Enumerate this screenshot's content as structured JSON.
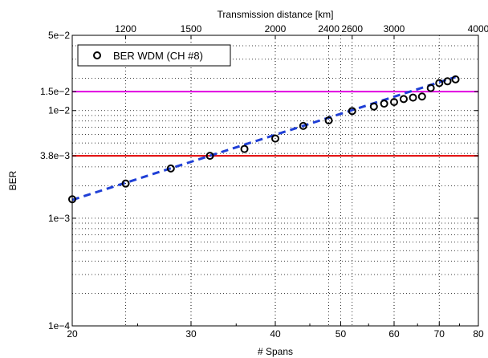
{
  "chart_data": {
    "type": "scatter",
    "title": "",
    "xlabel": "# Spans",
    "ylabel": "BER",
    "top_xlabel": "Transmission distance [km]",
    "x_scale": "log",
    "y_scale": "log",
    "xlim": [
      20,
      80
    ],
    "ylim": [
      0.0001,
      0.05
    ],
    "grid": true,
    "legend_position": "top-left",
    "x_ticks": [
      {
        "value": 20,
        "label": "20"
      },
      {
        "value": 30,
        "label": "30"
      },
      {
        "value": 40,
        "label": "40"
      },
      {
        "value": 50,
        "label": "50"
      },
      {
        "value": 60,
        "label": "60"
      },
      {
        "value": 70,
        "label": "70"
      },
      {
        "value": 80,
        "label": "80"
      }
    ],
    "y_ticks": [
      {
        "value": 0.0001,
        "label": "1e−4"
      },
      {
        "value": 0.001,
        "label": "1e−3"
      },
      {
        "value": 0.0038,
        "label": "3.8e−3"
      },
      {
        "value": 0.01,
        "label": "1e−2"
      },
      {
        "value": 0.015,
        "label": "1.5e−2"
      },
      {
        "value": 0.05,
        "label": "5e−2"
      }
    ],
    "top_ticks": [
      {
        "spans": 24,
        "label": "1200"
      },
      {
        "spans": 30,
        "label": "1500"
      },
      {
        "spans": 40,
        "label": "2000"
      },
      {
        "spans": 48,
        "label": "2400"
      },
      {
        "spans": 52,
        "label": "2600"
      },
      {
        "spans": 60,
        "label": "3000"
      },
      {
        "spans": 80,
        "label": "4000"
      }
    ],
    "series": [
      {
        "name": "BER WDM (CH #8)",
        "marker": "circle",
        "color": "#000000",
        "x": [
          20,
          24,
          28,
          32,
          36,
          40,
          44,
          48,
          52,
          56,
          58,
          60,
          62,
          64,
          66,
          68,
          70,
          72,
          74
        ],
        "y": [
          0.0015,
          0.0021,
          0.0029,
          0.0038,
          0.0044,
          0.0055,
          0.0072,
          0.0081,
          0.0099,
          0.0109,
          0.0116,
          0.012,
          0.0128,
          0.0132,
          0.0135,
          0.0162,
          0.018,
          0.0187,
          0.0195
        ]
      }
    ],
    "fit_line": {
      "x": [
        20,
        74
      ],
      "y": [
        0.00148,
        0.0205
      ],
      "color": "#1f3fd6",
      "style": "dashed"
    },
    "reference_lines": [
      {
        "y": 0.015,
        "color": "#e000e0"
      },
      {
        "y": 0.0038,
        "color": "#e00000"
      }
    ],
    "colors": {
      "frame": "#000000",
      "grid": "#000000"
    }
  }
}
